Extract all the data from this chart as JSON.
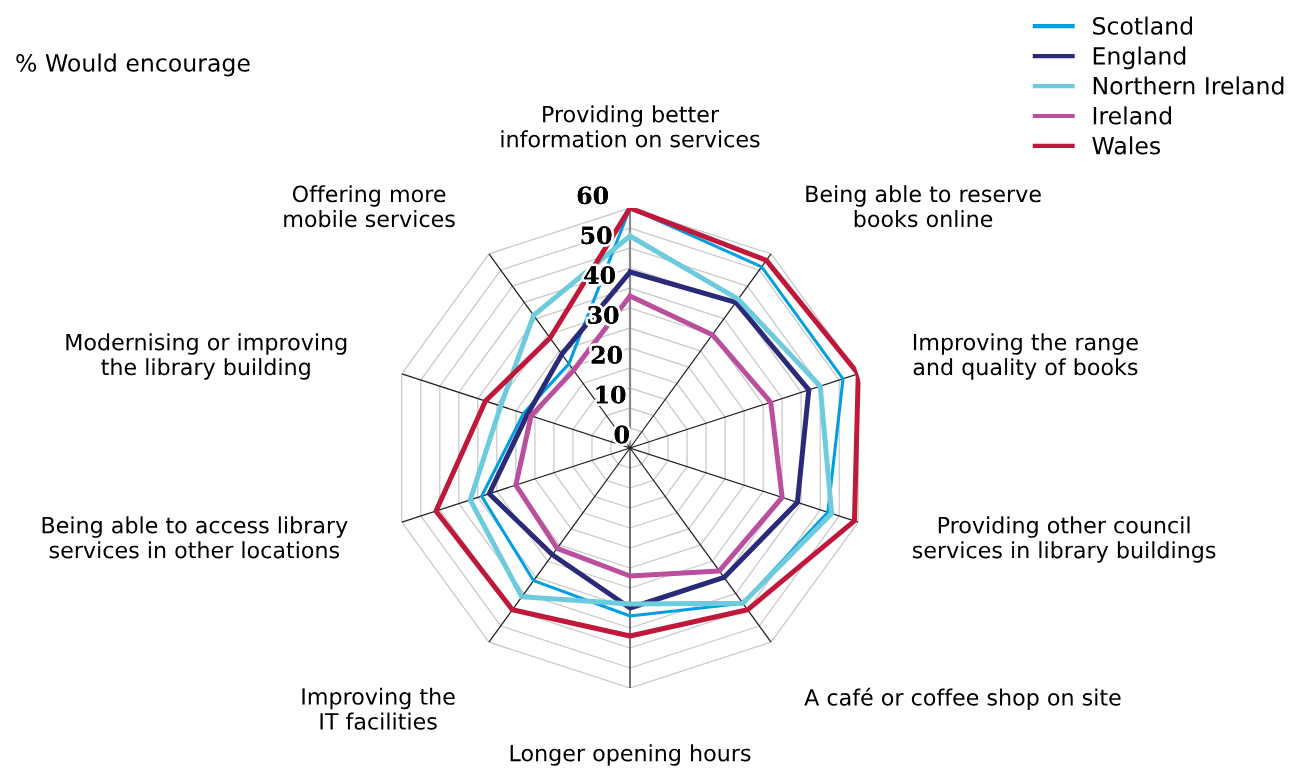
{
  "chart_data": {
    "type": "radar",
    "title": "% Would encourage",
    "categories": [
      "Providing better\ninformation on services",
      "Being able to reserve\nbooks online",
      "Improving the range\nand quality of books",
      "Providing other council\nservices in library buildings",
      "A café or coffee shop on site",
      "Longer opening hours",
      "Improving the\nIT facilities",
      "Being able to access library\nservices in other locations",
      "Modernising or improving\nthe library building",
      "Offering more\nmobile services"
    ],
    "series": [
      {
        "name": "Scotland",
        "color": "#009fe3",
        "values": [
          60,
          56,
          56,
          52,
          48,
          42,
          41,
          39,
          28,
          26
        ]
      },
      {
        "name": "England",
        "color": "#2b2a78",
        "values": [
          44,
          45,
          47,
          44,
          40,
          40,
          33,
          37,
          27,
          29
        ]
      },
      {
        "name": "Northern Ireland",
        "color": "#6ccbdc",
        "values": [
          53,
          46,
          50,
          53,
          48,
          39,
          46,
          42,
          34,
          41
        ]
      },
      {
        "name": "Ireland",
        "color": "#b94f9e",
        "values": [
          38,
          35,
          37,
          40,
          38,
          32,
          31,
          30,
          26,
          24
        ]
      },
      {
        "name": "Wales",
        "color": "#c0183a",
        "values": [
          60,
          58,
          60,
          59,
          50,
          47,
          50,
          51,
          38,
          34
        ]
      }
    ],
    "ylim": [
      0,
      60
    ],
    "yticks": [
      0,
      10,
      20,
      30,
      40,
      50,
      60
    ],
    "grid": true,
    "legend": "top right",
    "marker": "none",
    "line_style": "solid"
  }
}
